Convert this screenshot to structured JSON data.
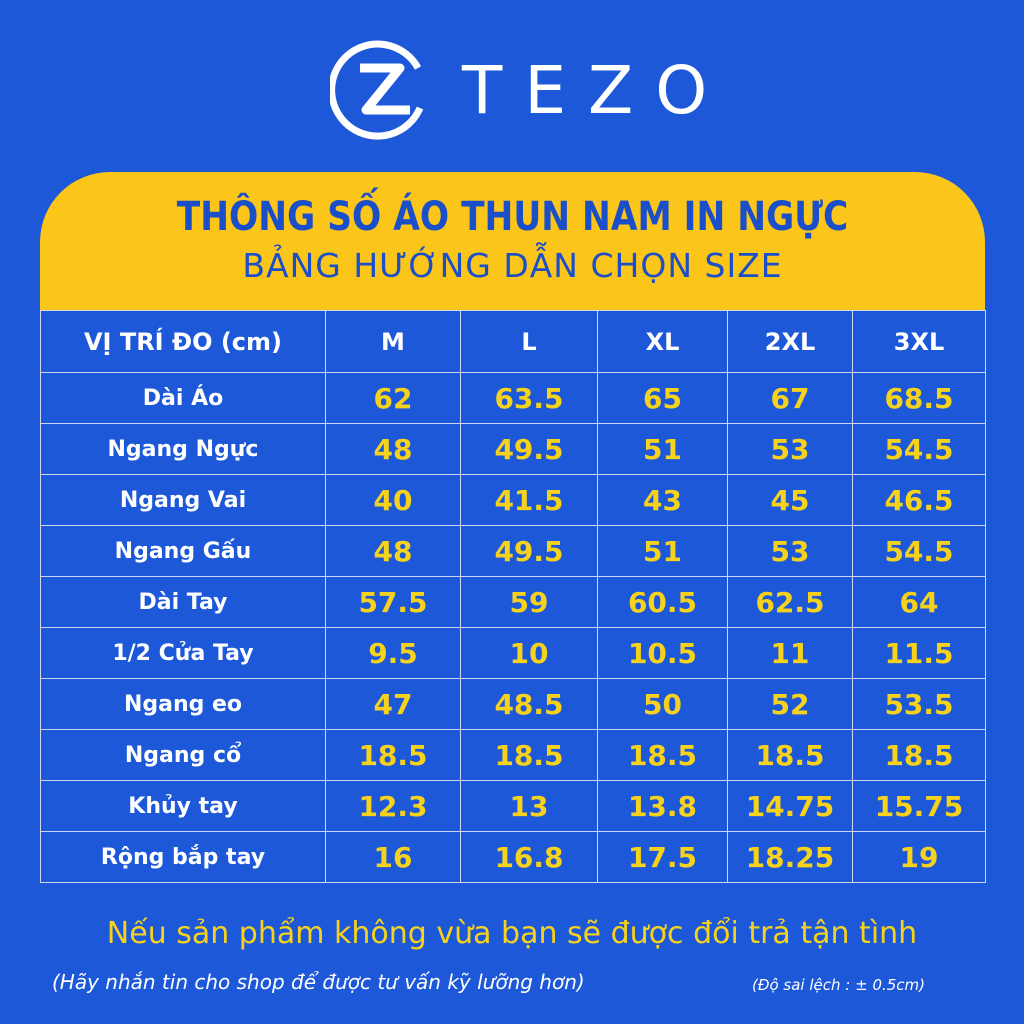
{
  "brand": "TEZO",
  "header": {
    "title": "THÔNG SỐ ÁO THUN NAM IN NGỰC",
    "subtitle": "BẢNG HƯỚNG DẪN CHỌN SIZE"
  },
  "table": {
    "columns": [
      "VỊ TRÍ ĐO (cm)",
      "M",
      "L",
      "XL",
      "2XL",
      "3XL"
    ],
    "rows": [
      [
        "Dài Áo",
        "62",
        "63.5",
        "65",
        "67",
        "68.5"
      ],
      [
        "Ngang Ngực",
        "48",
        "49.5",
        "51",
        "53",
        "54.5"
      ],
      [
        "Ngang Vai",
        "40",
        "41.5",
        "43",
        "45",
        "46.5"
      ],
      [
        "Ngang Gấu",
        "48",
        "49.5",
        "51",
        "53",
        "54.5"
      ],
      [
        "Dài Tay",
        "57.5",
        "59",
        "60.5",
        "62.5",
        "64"
      ],
      [
        "1/2 Cửa Tay",
        "9.5",
        "10",
        "10.5",
        "11",
        "11.5"
      ],
      [
        "Ngang eo",
        "47",
        "48.5",
        "50",
        "52",
        "53.5"
      ],
      [
        "Ngang cổ",
        "18.5",
        "18.5",
        "18.5",
        "18.5",
        "18.5"
      ],
      [
        "Khủy tay",
        "12.3",
        "13",
        "13.8",
        "14.75",
        "15.75"
      ],
      [
        "Rộng bắp tay",
        "16",
        "16.8",
        "17.5",
        "18.25",
        "19"
      ]
    ]
  },
  "footer": {
    "note": "Nếu sản phẩm không vừa bạn sẽ được đổi trả tận tình",
    "contact": "(Hãy nhắn tin cho shop để được tư vấn kỹ lưỡng hơn)",
    "tolerance": "(Độ sai lệch : ± 0.5cm)"
  }
}
